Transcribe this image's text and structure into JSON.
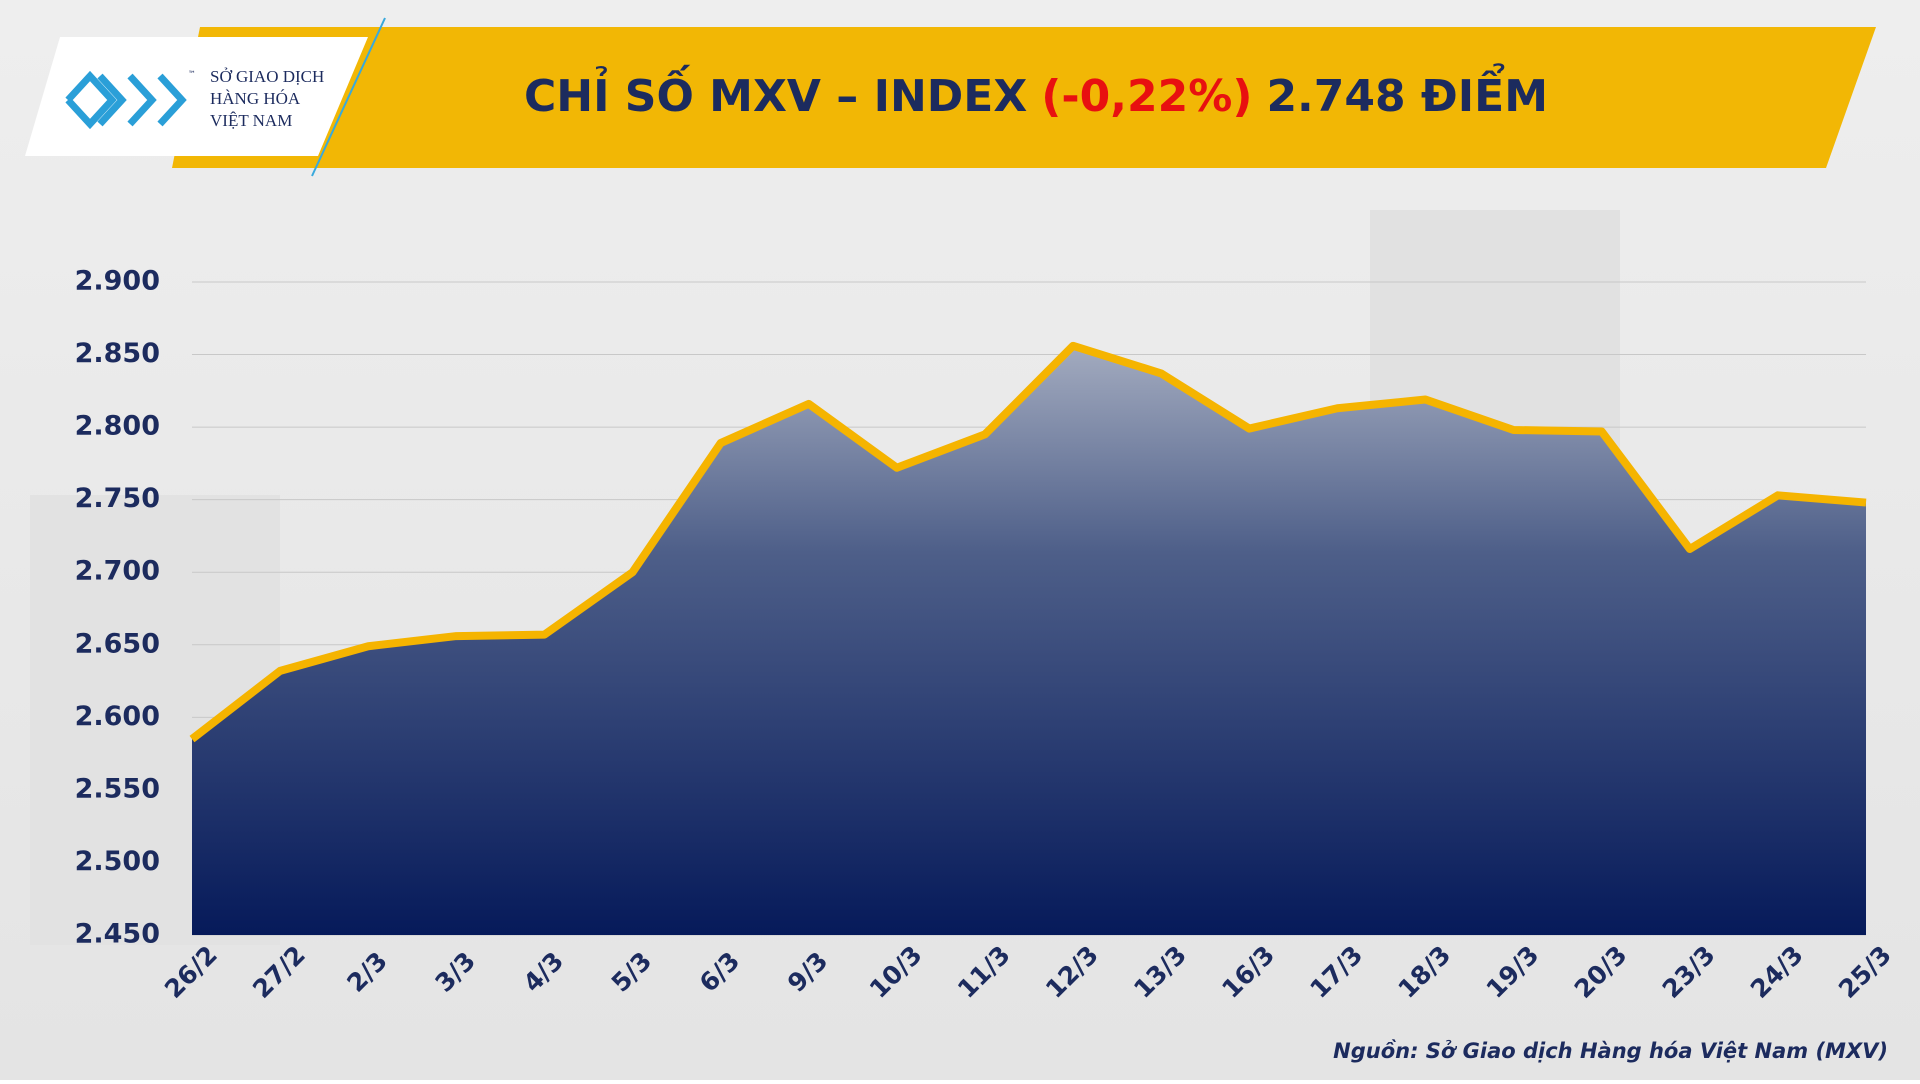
{
  "logo": {
    "lines": [
      "SỞ GIAO DỊCH",
      "HÀNG HÓA",
      "VIỆT NAM"
    ],
    "mark": "™"
  },
  "chart_data": {
    "type": "area",
    "title": [
      "CHỈ SỐ MXV – INDEX",
      "(-0,22%)",
      "2.748 ĐIỂM"
    ],
    "categories": [
      "26/2",
      "27/2",
      "2/3",
      "3/3",
      "4/3",
      "5/3",
      "6/3",
      "9/3",
      "10/3",
      "11/3",
      "12/3",
      "13/3",
      "16/3",
      "17/3",
      "18/3",
      "19/3",
      "20/3",
      "23/3",
      "24/3",
      "25/3"
    ],
    "values": [
      2585,
      2632,
      2649,
      2656,
      2657,
      2700,
      2789,
      2816,
      2772,
      2795,
      2856,
      2837,
      2799,
      2813,
      2819,
      2798,
      2797,
      2716,
      2753,
      2748
    ],
    "color": "#f5b400",
    "ylim": [
      2450,
      2900
    ],
    "yticks": [
      {
        "value": 2450,
        "label": "2.450"
      },
      {
        "value": 2500,
        "label": "2.500"
      },
      {
        "value": 2550,
        "label": "2.550"
      },
      {
        "value": 2600,
        "label": "2.600"
      },
      {
        "value": 2650,
        "label": "2.650"
      },
      {
        "value": 2700,
        "label": "2.700"
      },
      {
        "value": 2750,
        "label": "2.750"
      },
      {
        "value": 2800,
        "label": "2.800"
      },
      {
        "value": 2850,
        "label": "2.850"
      },
      {
        "value": 2900,
        "label": "2.900"
      }
    ],
    "grid": true,
    "source": "Nguồn: Sở Giao dịch Hàng hóa Việt Nam (MXV)"
  }
}
